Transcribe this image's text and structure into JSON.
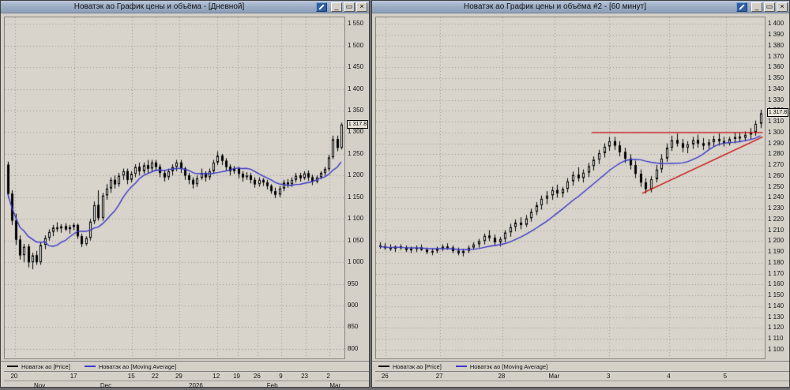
{
  "icons": {
    "minimize": "_",
    "maximize": "▭",
    "close": "×",
    "tools": "pencil-slash"
  },
  "colors": {
    "ma_line": "#3a3ac8",
    "candle_up": "#ffffff",
    "candle_down": "#000000",
    "trendline": "#cc1111",
    "grid": "#99958d",
    "plot_background": "#d8d4cc",
    "titlebar_accent": "#2e5fa3"
  },
  "windows": [
    {
      "title": "Новатэк ао График цены и объёма - [Дневной]",
      "legend": [
        {
          "label": "Новатэк ао [Price]",
          "color": "#000000"
        },
        {
          "label": "Новатэк ао [Moving Average]",
          "color": "#3a3ac8"
        }
      ]
    },
    {
      "title": "Новатэк ао График цены и объёма #2 - [60 минут]",
      "legend": [
        {
          "label": "Новатэк ао [Price]",
          "color": "#000000"
        },
        {
          "label": "Новатэк ао [Moving Average]",
          "color": "#3a3ac8"
        }
      ]
    }
  ],
  "chart_data": [
    {
      "type": "candlestick",
      "title": "Новатэк ао График цены и объёма - [Дневной]",
      "instrument": "Новатэк ао",
      "timeframe": "Дневной",
      "series": [
        "Price",
        "Moving Average"
      ],
      "ohlc_format": [
        "open",
        "high",
        "low",
        "close"
      ],
      "ylim": [
        778,
        1565
      ],
      "y_ticks": [
        800,
        850,
        900,
        950,
        1000,
        1050,
        1100,
        1150,
        1200,
        1250,
        1300,
        1350,
        1400,
        1450,
        1500,
        1550
      ],
      "last_price": 1317.8,
      "last_price_label": "1 317.8",
      "ma_period": 10,
      "x_ticks_days": [
        {
          "t": 0.03,
          "label": "20"
        },
        {
          "t": 0.205,
          "label": "17"
        },
        {
          "t": 0.375,
          "label": "15"
        },
        {
          "t": 0.445,
          "label": "22"
        },
        {
          "t": 0.515,
          "label": "29"
        },
        {
          "t": 0.625,
          "label": "12"
        },
        {
          "t": 0.685,
          "label": "19"
        },
        {
          "t": 0.745,
          "label": "26"
        },
        {
          "t": 0.815,
          "label": "9"
        },
        {
          "t": 0.885,
          "label": "23"
        },
        {
          "t": 0.955,
          "label": "2"
        }
      ],
      "x_ticks_months": [
        {
          "t": 0.105,
          "label": "Nov"
        },
        {
          "t": 0.3,
          "label": "Dec"
        },
        {
          "t": 0.565,
          "label": "2026"
        },
        {
          "t": 0.79,
          "label": "Feb"
        },
        {
          "t": 0.975,
          "label": "Mar"
        }
      ],
      "trendlines": [],
      "candles": [
        [
          1225,
          1232,
          1148,
          1158
        ],
        [
          1158,
          1166,
          1086,
          1096
        ],
        [
          1096,
          1112,
          1040,
          1052
        ],
        [
          1052,
          1062,
          1006,
          1016
        ],
        [
          1016,
          1042,
          1000,
          1036
        ],
        [
          1036,
          1042,
          988,
          1000
        ],
        [
          1000,
          1022,
          984,
          1016
        ],
        [
          1016,
          1026,
          994,
          1000
        ],
        [
          1000,
          1046,
          994,
          1040
        ],
        [
          1040,
          1062,
          1030,
          1056
        ],
        [
          1056,
          1076,
          1050,
          1070
        ],
        [
          1070,
          1086,
          1060,
          1080
        ],
        [
          1080,
          1092,
          1070,
          1078
        ],
        [
          1078,
          1088,
          1068,
          1083
        ],
        [
          1083,
          1090,
          1072,
          1076
        ],
        [
          1076,
          1086,
          1066,
          1081
        ],
        [
          1081,
          1090,
          1074,
          1086
        ],
        [
          1086,
          1089,
          1054,
          1060
        ],
        [
          1060,
          1066,
          1035,
          1042
        ],
        [
          1042,
          1060,
          1038,
          1056
        ],
        [
          1056,
          1100,
          1050,
          1094
        ],
        [
          1094,
          1140,
          1088,
          1132
        ],
        [
          1132,
          1166,
          1096,
          1102
        ],
        [
          1102,
          1160,
          1096,
          1154
        ],
        [
          1154,
          1180,
          1144,
          1170
        ],
        [
          1170,
          1196,
          1160,
          1190
        ],
        [
          1190,
          1200,
          1170,
          1180
        ],
        [
          1180,
          1206,
          1174,
          1200
        ],
        [
          1200,
          1216,
          1190,
          1210
        ],
        [
          1210,
          1216,
          1180,
          1190
        ],
        [
          1190,
          1210,
          1184,
          1204
        ],
        [
          1204,
          1226,
          1196,
          1220
        ],
        [
          1220,
          1230,
          1200,
          1210
        ],
        [
          1210,
          1230,
          1204,
          1224
        ],
        [
          1224,
          1236,
          1206,
          1216
        ],
        [
          1216,
          1236,
          1210,
          1230
        ],
        [
          1230,
          1236,
          1210,
          1220
        ],
        [
          1220,
          1226,
          1196,
          1206
        ],
        [
          1206,
          1212,
          1186,
          1196
        ],
        [
          1196,
          1216,
          1190,
          1210
        ],
        [
          1210,
          1226,
          1200,
          1220
        ],
        [
          1220,
          1236,
          1210,
          1230
        ],
        [
          1230,
          1236,
          1206,
          1216
        ],
        [
          1216,
          1220,
          1190,
          1200
        ],
        [
          1200,
          1206,
          1180,
          1190
        ],
        [
          1190,
          1196,
          1170,
          1180
        ],
        [
          1180,
          1200,
          1174,
          1194
        ],
        [
          1194,
          1216,
          1190,
          1206
        ],
        [
          1206,
          1210,
          1186,
          1196
        ],
        [
          1196,
          1216,
          1190,
          1210
        ],
        [
          1210,
          1236,
          1204,
          1230
        ],
        [
          1230,
          1256,
          1224,
          1246
        ],
        [
          1246,
          1250,
          1224,
          1234
        ],
        [
          1234,
          1240,
          1212,
          1220
        ],
        [
          1220,
          1226,
          1200,
          1210
        ],
        [
          1210,
          1222,
          1204,
          1216
        ],
        [
          1216,
          1220,
          1194,
          1204
        ],
        [
          1204,
          1210,
          1186,
          1196
        ],
        [
          1196,
          1208,
          1190,
          1200
        ],
        [
          1200,
          1206,
          1182,
          1190
        ],
        [
          1190,
          1196,
          1172,
          1180
        ],
        [
          1180,
          1196,
          1174,
          1190
        ],
        [
          1190,
          1194,
          1176,
          1184
        ],
        [
          1184,
          1190,
          1168,
          1176
        ],
        [
          1176,
          1180,
          1158,
          1164
        ],
        [
          1164,
          1172,
          1148,
          1156
        ],
        [
          1156,
          1176,
          1150,
          1170
        ],
        [
          1170,
          1190,
          1164,
          1184
        ],
        [
          1184,
          1192,
          1172,
          1180
        ],
        [
          1180,
          1196,
          1174,
          1190
        ],
        [
          1190,
          1206,
          1184,
          1200
        ],
        [
          1200,
          1206,
          1186,
          1194
        ],
        [
          1194,
          1210,
          1190,
          1205
        ],
        [
          1205,
          1212,
          1188,
          1196
        ],
        [
          1196,
          1202,
          1178,
          1186
        ],
        [
          1186,
          1200,
          1182,
          1196
        ],
        [
          1196,
          1210,
          1192,
          1206
        ],
        [
          1206,
          1220,
          1200,
          1215
        ],
        [
          1215,
          1248,
          1210,
          1242
        ],
        [
          1242,
          1292,
          1238,
          1284
        ],
        [
          1284,
          1292,
          1256,
          1264
        ],
        [
          1264,
          1322,
          1260,
          1317.8
        ]
      ]
    },
    {
      "type": "candlestick",
      "title": "Новатэк ао График цены и объёма #2 - [60 минут]",
      "instrument": "Новатэк ао",
      "timeframe": "60 минут",
      "series": [
        "Price",
        "Moving Average"
      ],
      "ohlc_format": [
        "open",
        "high",
        "low",
        "close"
      ],
      "ylim": [
        1092,
        1406
      ],
      "y_ticks": [
        1100,
        1110,
        1120,
        1130,
        1140,
        1150,
        1160,
        1170,
        1180,
        1190,
        1200,
        1210,
        1220,
        1230,
        1240,
        1250,
        1260,
        1270,
        1280,
        1290,
        1300,
        1310,
        1320,
        1330,
        1340,
        1350,
        1360,
        1370,
        1380,
        1390,
        1400
      ],
      "last_price": 1317.8,
      "last_price_label": "1 317.8",
      "ma_period": 12,
      "x_ticks_days": [
        {
          "t": 0.025,
          "label": "26"
        },
        {
          "t": 0.165,
          "label": "27"
        },
        {
          "t": 0.325,
          "label": "28"
        },
        {
          "t": 0.46,
          "label": "Mar"
        },
        {
          "t": 0.6,
          "label": "3"
        },
        {
          "t": 0.755,
          "label": "4"
        },
        {
          "t": 0.9,
          "label": "5"
        }
      ],
      "x_ticks_months": [],
      "trendlines": [
        {
          "x1": 0.555,
          "y1": 1300,
          "x2": 0.995,
          "y2": 1300,
          "color": "#cc1111"
        },
        {
          "x1": 0.685,
          "y1": 1244,
          "x2": 0.995,
          "y2": 1296,
          "color": "#cc1111"
        }
      ],
      "candles": [
        [
          1196,
          1199,
          1193,
          1195
        ],
        [
          1195,
          1198,
          1192,
          1194
        ],
        [
          1194,
          1197,
          1191,
          1193
        ],
        [
          1193,
          1196,
          1190,
          1195
        ],
        [
          1195,
          1197,
          1192,
          1194
        ],
        [
          1194,
          1196,
          1190,
          1192
        ],
        [
          1192,
          1195,
          1189,
          1193
        ],
        [
          1193,
          1196,
          1190,
          1194
        ],
        [
          1194,
          1197,
          1191,
          1192
        ],
        [
          1192,
          1194,
          1188,
          1190
        ],
        [
          1190,
          1193,
          1187,
          1191
        ],
        [
          1191,
          1195,
          1189,
          1193
        ],
        [
          1193,
          1197,
          1191,
          1195
        ],
        [
          1195,
          1198,
          1192,
          1194
        ],
        [
          1194,
          1196,
          1189,
          1191
        ],
        [
          1191,
          1194,
          1187,
          1189
        ],
        [
          1189,
          1193,
          1186,
          1191
        ],
        [
          1191,
          1196,
          1189,
          1194
        ],
        [
          1194,
          1199,
          1192,
          1197
        ],
        [
          1197,
          1202,
          1194,
          1200
        ],
        [
          1200,
          1207,
          1197,
          1205
        ],
        [
          1205,
          1210,
          1200,
          1203
        ],
        [
          1203,
          1206,
          1196,
          1199
        ],
        [
          1199,
          1204,
          1195,
          1202
        ],
        [
          1202,
          1210,
          1199,
          1208
        ],
        [
          1208,
          1216,
          1204,
          1213
        ],
        [
          1213,
          1220,
          1209,
          1217
        ],
        [
          1217,
          1222,
          1211,
          1215
        ],
        [
          1215,
          1224,
          1213,
          1221
        ],
        [
          1221,
          1230,
          1218,
          1227
        ],
        [
          1227,
          1236,
          1224,
          1233
        ],
        [
          1233,
          1242,
          1229,
          1239
        ],
        [
          1239,
          1246,
          1234,
          1242
        ],
        [
          1242,
          1250,
          1238,
          1247
        ],
        [
          1247,
          1252,
          1240,
          1244
        ],
        [
          1244,
          1250,
          1240,
          1248
        ],
        [
          1248,
          1258,
          1245,
          1255
        ],
        [
          1255,
          1264,
          1251,
          1261
        ],
        [
          1261,
          1268,
          1255,
          1258
        ],
        [
          1258,
          1266,
          1254,
          1263
        ],
        [
          1263,
          1272,
          1259,
          1269
        ],
        [
          1269,
          1278,
          1265,
          1275
        ],
        [
          1275,
          1284,
          1271,
          1281
        ],
        [
          1281,
          1290,
          1277,
          1287
        ],
        [
          1287,
          1296,
          1283,
          1292
        ],
        [
          1292,
          1296,
          1284,
          1288
        ],
        [
          1288,
          1292,
          1278,
          1282
        ],
        [
          1282,
          1286,
          1272,
          1276
        ],
        [
          1276,
          1280,
          1266,
          1270
        ],
        [
          1270,
          1274,
          1258,
          1262
        ],
        [
          1262,
          1266,
          1250,
          1254
        ],
        [
          1254,
          1258,
          1244,
          1248
        ],
        [
          1248,
          1260,
          1245,
          1257
        ],
        [
          1257,
          1270,
          1254,
          1266
        ],
        [
          1266,
          1280,
          1263,
          1276
        ],
        [
          1276,
          1290,
          1273,
          1286
        ],
        [
          1286,
          1297,
          1283,
          1293
        ],
        [
          1293,
          1299,
          1287,
          1290
        ],
        [
          1290,
          1294,
          1282,
          1286
        ],
        [
          1286,
          1292,
          1281,
          1289
        ],
        [
          1289,
          1296,
          1285,
          1293
        ],
        [
          1293,
          1298,
          1286,
          1290
        ],
        [
          1290,
          1295,
          1284,
          1288
        ],
        [
          1288,
          1294,
          1285,
          1291
        ],
        [
          1291,
          1297,
          1287,
          1294
        ],
        [
          1294,
          1299,
          1288,
          1292
        ],
        [
          1292,
          1296,
          1287,
          1290
        ],
        [
          1290,
          1296,
          1288,
          1294
        ],
        [
          1294,
          1300,
          1290,
          1296
        ],
        [
          1296,
          1300,
          1291,
          1295
        ],
        [
          1295,
          1301,
          1292,
          1298
        ],
        [
          1298,
          1304,
          1294,
          1300
        ],
        [
          1300,
          1311,
          1297,
          1308
        ],
        [
          1308,
          1321,
          1304,
          1317.8
        ]
      ]
    }
  ]
}
